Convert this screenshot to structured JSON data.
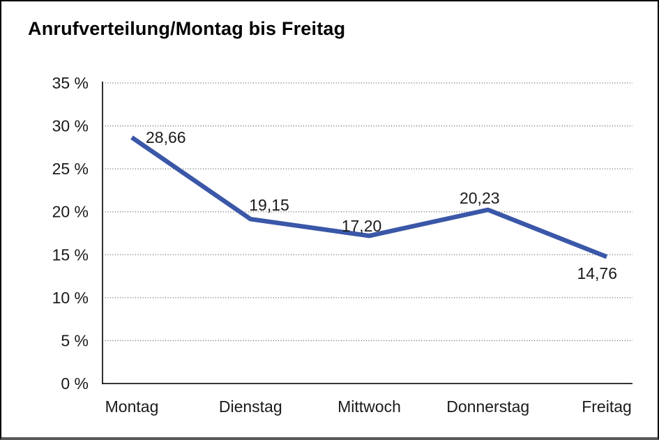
{
  "window": {
    "title": "Anrufverteilung/Montag bis Freitag"
  },
  "chart_data": {
    "type": "line",
    "title": "Anrufverteilung/Montag bis Freitag",
    "categories": [
      "Montag",
      "Dienstag",
      "Mittwoch",
      "Donnerstag",
      "Freitag"
    ],
    "values": [
      28.66,
      19.15,
      17.2,
      20.23,
      14.76
    ],
    "data_labels": [
      "28,66",
      "19,15",
      "17,20",
      "20,23",
      "14,76"
    ],
    "ytick_labels": [
      "0 %",
      "5 %",
      "10 %",
      "15 %",
      "20 %",
      "25 %",
      "30 %",
      "35 %"
    ],
    "ylim": [
      0,
      35
    ],
    "ytick_step": 5,
    "xlabel": "",
    "ylabel": "",
    "legend": "none",
    "grid": "horizontal-dotted",
    "colors": {
      "line": "#3a57a8",
      "grid": "#5a5a5a",
      "axis": "#1a1a1a",
      "text": "#1a1a1a",
      "frame_bottom": "#58595b"
    }
  }
}
